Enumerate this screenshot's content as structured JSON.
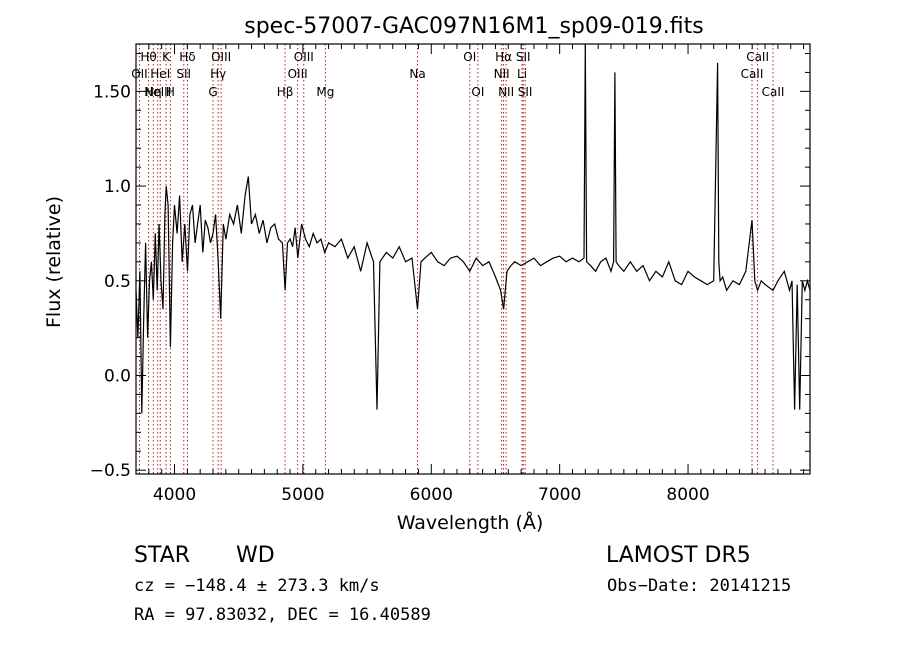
{
  "chart_data": {
    "type": "line",
    "title": "spec-57007-GAC097N16M1_sp09-019.fits",
    "xlabel": "Wavelength (Å)",
    "ylabel": "Flux (relative)",
    "xlim": [
      3700,
      8950
    ],
    "ylim": [
      -0.52,
      1.75
    ],
    "x_ticks": [
      4000,
      5000,
      6000,
      7000,
      8000
    ],
    "x_tick_labels": [
      "4000",
      "5000",
      "6000",
      "7000",
      "8000"
    ],
    "y_ticks": [
      -0.5,
      0.0,
      0.5,
      1.0,
      1.5
    ],
    "y_tick_labels": [
      "−0.5",
      "0.0",
      "0.5",
      "1.0",
      "1.50"
    ],
    "line_color": "#000000",
    "marker_color": "#b22222",
    "grid": false,
    "series": [
      {
        "x": [
          3700,
          3715,
          3730,
          3745,
          3760,
          3775,
          3790,
          3805,
          3820,
          3835,
          3850,
          3865,
          3880,
          3895,
          3910,
          3925,
          3935,
          3950,
          3968,
          3985,
          4000,
          4020,
          4040,
          4060,
          4080,
          4101,
          4120,
          4140,
          4160,
          4180,
          4200,
          4220,
          4240,
          4260,
          4280,
          4300,
          4320,
          4340,
          4360,
          4380,
          4400,
          4430,
          4460,
          4490,
          4520,
          4550,
          4575,
          4600,
          4630,
          4660,
          4690,
          4720,
          4750,
          4780,
          4810,
          4840,
          4861,
          4880,
          4900,
          4920,
          4940,
          4960,
          4990,
          5020,
          5050,
          5080,
          5110,
          5140,
          5170,
          5200,
          5250,
          5300,
          5350,
          5400,
          5450,
          5500,
          5550,
          5577,
          5600,
          5650,
          5700,
          5750,
          5800,
          5850,
          5893,
          5920,
          5950,
          6000,
          6050,
          6100,
          6150,
          6200,
          6250,
          6300,
          6350,
          6400,
          6450,
          6500,
          6540,
          6563,
          6590,
          6620,
          6650,
          6700,
          6750,
          6800,
          6850,
          6900,
          6950,
          7000,
          7050,
          7100,
          7150,
          7190,
          7200,
          7210,
          7240,
          7280,
          7320,
          7360,
          7400,
          7420,
          7430,
          7440,
          7460,
          7500,
          7550,
          7600,
          7650,
          7700,
          7750,
          7800,
          7850,
          7900,
          7950,
          8000,
          8050,
          8100,
          8150,
          8200,
          8230,
          8240,
          8250,
          8270,
          8300,
          8350,
          8400,
          8450,
          8498,
          8520,
          8542,
          8570,
          8600,
          8662,
          8700,
          8750,
          8790,
          8810,
          8830,
          8850,
          8870,
          8890,
          8910,
          8930,
          8950
        ],
        "y": [
          0.45,
          0.2,
          0.55,
          -0.2,
          0.3,
          0.7,
          0.2,
          0.5,
          0.6,
          0.4,
          0.75,
          0.45,
          0.8,
          0.5,
          0.35,
          0.85,
          1.0,
          0.9,
          0.15,
          0.7,
          0.9,
          0.75,
          0.95,
          0.6,
          0.8,
          0.55,
          0.85,
          0.9,
          0.7,
          0.8,
          0.9,
          0.65,
          0.82,
          0.78,
          0.7,
          0.75,
          0.85,
          0.6,
          0.3,
          0.8,
          0.72,
          0.85,
          0.8,
          0.9,
          0.75,
          0.95,
          1.05,
          0.8,
          0.85,
          0.75,
          0.82,
          0.7,
          0.78,
          0.8,
          0.72,
          0.7,
          0.45,
          0.7,
          0.72,
          0.68,
          0.78,
          0.62,
          0.8,
          0.72,
          0.68,
          0.75,
          0.7,
          0.72,
          0.65,
          0.7,
          0.68,
          0.72,
          0.62,
          0.68,
          0.55,
          0.7,
          0.6,
          -0.18,
          0.6,
          0.65,
          0.62,
          0.68,
          0.6,
          0.62,
          0.35,
          0.6,
          0.62,
          0.65,
          0.6,
          0.58,
          0.62,
          0.63,
          0.6,
          0.55,
          0.62,
          0.58,
          0.6,
          0.52,
          0.45,
          0.35,
          0.55,
          0.58,
          0.6,
          0.58,
          0.6,
          0.62,
          0.58,
          0.6,
          0.62,
          0.63,
          0.6,
          0.62,
          0.6,
          0.62,
          1.75,
          0.6,
          0.58,
          0.55,
          0.6,
          0.62,
          0.55,
          0.6,
          1.6,
          0.6,
          0.58,
          0.55,
          0.6,
          0.55,
          0.58,
          0.5,
          0.55,
          0.52,
          0.6,
          0.5,
          0.48,
          0.55,
          0.52,
          0.5,
          0.48,
          0.5,
          1.65,
          0.6,
          0.5,
          0.52,
          0.45,
          0.5,
          0.48,
          0.55,
          0.82,
          0.5,
          0.45,
          0.5,
          0.48,
          0.45,
          0.5,
          0.55,
          0.45,
          0.5,
          -0.18,
          0.48,
          -0.18,
          0.5,
          0.45,
          0.5,
          0.45
        ]
      }
    ],
    "line_markers": [
      {
        "x": 3727,
        "label": "OII",
        "row": 2
      },
      {
        "x": 3798,
        "label": "Hθ",
        "row": 1
      },
      {
        "x": 3835,
        "label": "Hη",
        "row": 3
      },
      {
        "x": 3869,
        "label": "NeIII",
        "row": 3
      },
      {
        "x": 3889,
        "label": "HeI",
        "row": 2
      },
      {
        "x": 3934,
        "label": "K",
        "row": 1
      },
      {
        "x": 3968,
        "label": "H",
        "row": 3
      },
      {
        "x": 4072,
        "label": "SII",
        "row": 2
      },
      {
        "x": 4101,
        "label": "Hδ",
        "row": 1
      },
      {
        "x": 4300,
        "label": "G",
        "row": 3
      },
      {
        "x": 4340,
        "label": "Hγ",
        "row": 2
      },
      {
        "x": 4363,
        "label": "OIII",
        "row": 1
      },
      {
        "x": 4861,
        "label": "Hβ",
        "row": 3
      },
      {
        "x": 4959,
        "label": "OIII",
        "row": 2
      },
      {
        "x": 5007,
        "label": "OIII",
        "row": 1
      },
      {
        "x": 5175,
        "label": "Mg",
        "row": 3
      },
      {
        "x": 5893,
        "label": "Na",
        "row": 2
      },
      {
        "x": 6300,
        "label": "OI",
        "row": 1
      },
      {
        "x": 6363,
        "label": "OI",
        "row": 3
      },
      {
        "x": 6548,
        "label": "NII",
        "row": 2
      },
      {
        "x": 6563,
        "label": "Hα",
        "row": 1
      },
      {
        "x": 6583,
        "label": "NII",
        "row": 3
      },
      {
        "x": 6707,
        "label": "Li",
        "row": 2
      },
      {
        "x": 6716,
        "label": "SII",
        "row": 1
      },
      {
        "x": 6731,
        "label": "SII",
        "row": 3
      },
      {
        "x": 8498,
        "label": "CaII",
        "row": 2
      },
      {
        "x": 8542,
        "label": "CaII",
        "row": 1
      },
      {
        "x": 8662,
        "label": "CaII",
        "row": 3
      }
    ]
  },
  "footer": {
    "object_class": "STAR",
    "subclass": "WD",
    "survey": "LAMOST DR5",
    "cz": "cz = −148.4 ± 273.3 km/s",
    "obs_date": "Obs−Date: 20141215",
    "coords": "RA =  97.83032, DEC =  16.40589"
  }
}
